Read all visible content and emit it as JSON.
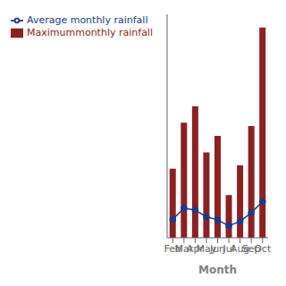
{
  "chart_data": {
    "type": "bar",
    "categories": [
      "Feb",
      "Mar",
      "Apr",
      "May",
      "Jun",
      "Jul",
      "Aug",
      "Sep",
      "Oct"
    ],
    "series": [
      {
        "name": "Maximummonthly rainfall",
        "type": "bar",
        "color": "#8B2222",
        "values": [
          105,
          175,
          200,
          130,
          155,
          65,
          110,
          170,
          320
        ]
      },
      {
        "name": "Average monthly rainfall",
        "type": "line",
        "color": "#1C3A8A",
        "marker": "circle",
        "values": [
          28,
          45,
          42,
          32,
          27,
          18,
          25,
          38,
          55
        ]
      }
    ],
    "xlabel": "Month",
    "ylim": [
      0,
      340
    ],
    "legend": "upper left",
    "tick_labels": "x",
    "grid": false
  }
}
